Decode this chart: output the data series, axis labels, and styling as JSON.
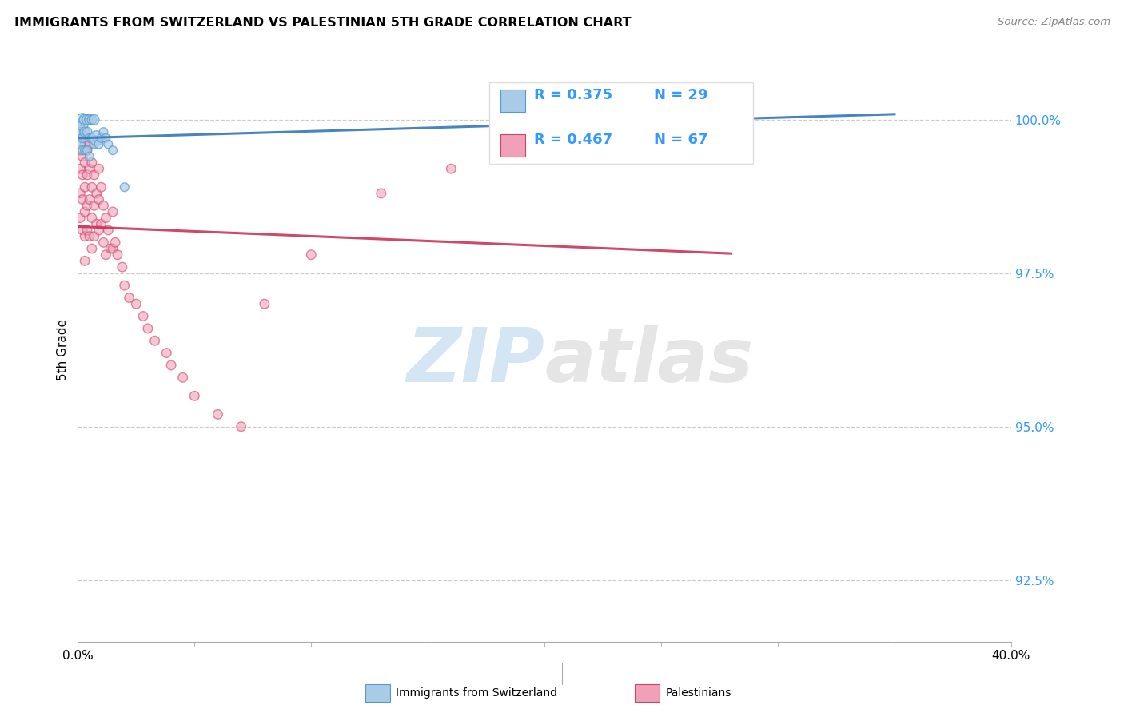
{
  "title": "IMMIGRANTS FROM SWITZERLAND VS PALESTINIAN 5TH GRADE CORRELATION CHART",
  "source": "Source: ZipAtlas.com",
  "ylabel": "5th Grade",
  "yticks": [
    92.5,
    95.0,
    97.5,
    100.0
  ],
  "ytick_labels": [
    "92.5%",
    "95.0%",
    "97.5%",
    "100.0%"
  ],
  "xlim": [
    0.0,
    0.4
  ],
  "ylim": [
    91.5,
    101.0
  ],
  "x_tick_positions": [
    0.0,
    0.05,
    0.1,
    0.15,
    0.2,
    0.25,
    0.3,
    0.35,
    0.4
  ],
  "x_tick_labels": [
    "0.0%",
    "",
    "",
    "",
    "",
    "",
    "",
    "",
    "40.0%"
  ],
  "legend_blue_r": "R = 0.375",
  "legend_blue_n": "N = 29",
  "legend_pink_r": "R = 0.467",
  "legend_pink_n": "N = 67",
  "legend_blue_label": "Immigrants from Switzerland",
  "legend_pink_label": "Palestinians",
  "blue_color": "#a8cce8",
  "blue_edge_color": "#5599cc",
  "pink_color": "#f0a0b8",
  "pink_edge_color": "#cc4466",
  "blue_line_color": "#3377bb",
  "pink_line_color": "#cc3355",
  "watermark_zip": "ZIP",
  "watermark_atlas": "atlas",
  "swiss_x": [
    0.001,
    0.001,
    0.002,
    0.002,
    0.002,
    0.002,
    0.003,
    0.003,
    0.003,
    0.004,
    0.004,
    0.004,
    0.005,
    0.005,
    0.005,
    0.006,
    0.006,
    0.007,
    0.007,
    0.008,
    0.009,
    0.01,
    0.011,
    0.012,
    0.013,
    0.015,
    0.02,
    0.2,
    0.265
  ],
  "swiss_y": [
    99.8,
    99.6,
    100.0,
    99.9,
    99.7,
    99.5,
    100.0,
    99.8,
    99.5,
    100.0,
    99.8,
    99.5,
    100.0,
    99.7,
    99.4,
    100.0,
    99.7,
    100.0,
    99.6,
    99.7,
    99.6,
    99.7,
    99.8,
    99.7,
    99.6,
    99.5,
    98.9,
    100.0,
    100.0
  ],
  "swiss_sizes": [
    80,
    70,
    130,
    90,
    70,
    60,
    100,
    80,
    60,
    90,
    70,
    60,
    80,
    60,
    60,
    70,
    60,
    80,
    60,
    170,
    60,
    60,
    60,
    60,
    60,
    60,
    60,
    60,
    60
  ],
  "pal_x": [
    0.001,
    0.001,
    0.001,
    0.001,
    0.001,
    0.002,
    0.002,
    0.002,
    0.002,
    0.002,
    0.003,
    0.003,
    0.003,
    0.003,
    0.003,
    0.003,
    0.004,
    0.004,
    0.004,
    0.004,
    0.005,
    0.005,
    0.005,
    0.005,
    0.006,
    0.006,
    0.006,
    0.006,
    0.007,
    0.007,
    0.007,
    0.008,
    0.008,
    0.009,
    0.009,
    0.009,
    0.01,
    0.01,
    0.011,
    0.011,
    0.012,
    0.012,
    0.013,
    0.014,
    0.015,
    0.015,
    0.016,
    0.017,
    0.019,
    0.02,
    0.022,
    0.025,
    0.028,
    0.03,
    0.033,
    0.038,
    0.04,
    0.045,
    0.05,
    0.06,
    0.07,
    0.08,
    0.1,
    0.13,
    0.16,
    0.19,
    0.22
  ],
  "pal_y": [
    99.8,
    99.5,
    99.2,
    98.8,
    98.4,
    99.7,
    99.4,
    99.1,
    98.7,
    98.2,
    99.6,
    99.3,
    98.9,
    98.5,
    98.1,
    97.7,
    99.5,
    99.1,
    98.6,
    98.2,
    99.6,
    99.2,
    98.7,
    98.1,
    99.3,
    98.9,
    98.4,
    97.9,
    99.1,
    98.6,
    98.1,
    98.8,
    98.3,
    99.2,
    98.7,
    98.2,
    98.9,
    98.3,
    98.6,
    98.0,
    98.4,
    97.8,
    98.2,
    97.9,
    98.5,
    97.9,
    98.0,
    97.8,
    97.6,
    97.3,
    97.1,
    97.0,
    96.8,
    96.6,
    96.4,
    96.2,
    96.0,
    95.8,
    95.5,
    95.2,
    95.0,
    97.0,
    97.8,
    98.8,
    99.2,
    99.8,
    100.0
  ],
  "pal_sizes": [
    70,
    70,
    70,
    70,
    70,
    70,
    70,
    70,
    70,
    70,
    70,
    70,
    70,
    70,
    70,
    70,
    70,
    70,
    70,
    70,
    70,
    70,
    70,
    70,
    70,
    70,
    70,
    70,
    70,
    70,
    70,
    70,
    70,
    70,
    70,
    70,
    70,
    70,
    70,
    70,
    70,
    70,
    70,
    70,
    70,
    70,
    70,
    70,
    70,
    70,
    70,
    70,
    70,
    70,
    70,
    70,
    70,
    70,
    70,
    70,
    70,
    70,
    70,
    70,
    70,
    70,
    70
  ]
}
